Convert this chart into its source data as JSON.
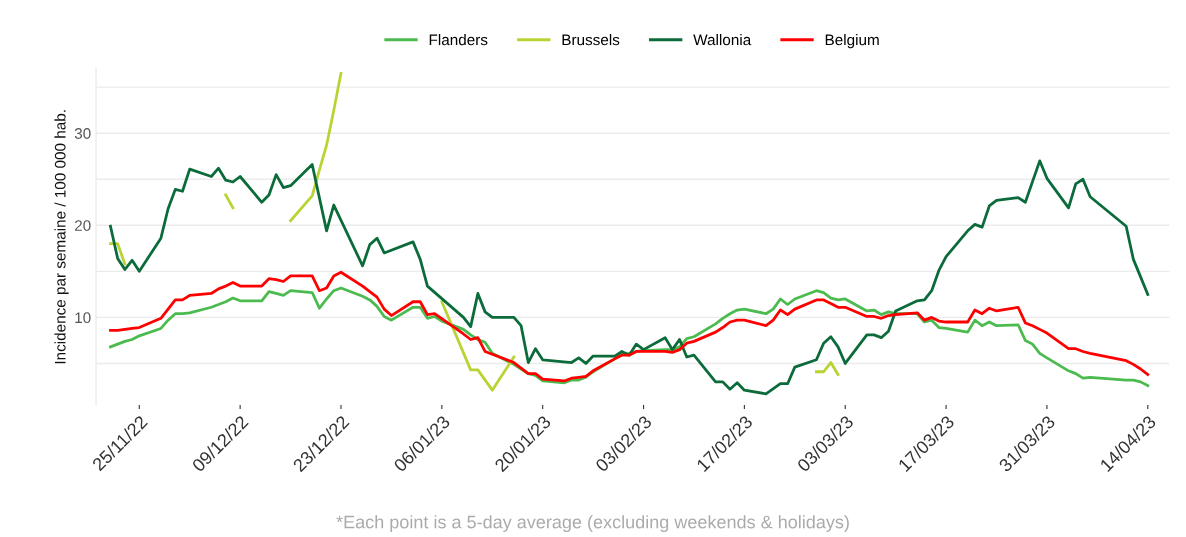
{
  "chart_data": {
    "type": "line",
    "ylabel": "Incidence par semaine / 100 000 hab.",
    "annotations": [
      "*Each point is a 5-day average (excluding weekends & holidays)"
    ],
    "xlim": [
      "2022-11-19",
      "2023-04-17"
    ],
    "xticks": [
      {
        "value": "2022-11-25",
        "label": "25/11/22"
      },
      {
        "value": "2022-12-09",
        "label": "09/12/22"
      },
      {
        "value": "2022-12-23",
        "label": "23/12/22"
      },
      {
        "value": "2023-01-06",
        "label": "06/01/23"
      },
      {
        "value": "2023-01-20",
        "label": "20/01/23"
      },
      {
        "value": "2023-02-03",
        "label": "03/02/23"
      },
      {
        "value": "2023-02-17",
        "label": "17/02/23"
      },
      {
        "value": "2023-03-03",
        "label": "03/03/23"
      },
      {
        "value": "2023-03-17",
        "label": "17/03/23"
      },
      {
        "value": "2023-03-31",
        "label": "31/03/23"
      },
      {
        "value": "2023-04-14",
        "label": "14/04/23"
      }
    ],
    "ylim": [
      0.5,
      37
    ],
    "yticks": [
      {
        "value": 5,
        "label": null
      },
      10,
      {
        "value": 15,
        "label": null
      },
      20,
      {
        "value": 25,
        "label": null
      },
      30,
      {
        "value": 35,
        "label": null
      }
    ],
    "grid": "y",
    "legend": "top",
    "line_style": "solid",
    "marker": "none",
    "series": [
      {
        "name": "Flanders",
        "color": "#4cbb4f",
        "x": [
          "2022-11-21",
          "2022-11-22",
          "2022-11-23",
          "2022-11-24",
          "2022-11-25",
          "2022-11-28",
          "2022-11-29",
          "2022-11-30",
          "2022-12-01",
          "2022-12-02",
          "2022-12-05",
          "2022-12-06",
          "2022-12-07",
          "2022-12-08",
          "2022-12-09",
          "2022-12-12",
          "2022-12-13",
          "2022-12-14",
          "2022-12-15",
          "2022-12-16",
          "2022-12-19",
          "2022-12-20",
          "2022-12-21",
          "2022-12-22",
          "2022-12-23",
          "2022-12-26",
          "2022-12-27",
          "2022-12-28",
          "2022-12-29",
          "2022-12-30",
          "2023-01-02",
          "2023-01-03",
          "2023-01-04",
          "2023-01-05",
          "2023-01-06",
          "2023-01-09",
          "2023-01-10",
          "2023-01-11",
          "2023-01-12",
          "2023-01-13",
          "2023-01-16",
          "2023-01-17",
          "2023-01-18",
          "2023-01-19",
          "2023-01-20",
          "2023-01-23",
          "2023-01-24",
          "2023-01-25",
          "2023-01-26",
          "2023-01-27",
          "2023-01-30",
          "2023-01-31",
          "2023-02-01",
          "2023-02-02",
          "2023-02-03",
          "2023-02-06",
          "2023-02-07",
          "2023-02-08",
          "2023-02-09",
          "2023-02-10",
          "2023-02-13",
          "2023-02-14",
          "2023-02-15",
          "2023-02-16",
          "2023-02-17",
          "2023-02-20",
          "2023-02-21",
          "2023-02-22",
          "2023-02-23",
          "2023-02-24",
          "2023-02-27",
          "2023-02-28",
          "2023-03-01",
          "2023-03-02",
          "2023-03-03",
          "2023-03-06",
          "2023-03-07",
          "2023-03-08",
          "2023-03-09",
          "2023-03-10",
          "2023-03-13",
          "2023-03-14",
          "2023-03-15",
          "2023-03-16",
          "2023-03-17",
          "2023-03-20",
          "2023-03-21",
          "2023-03-22",
          "2023-03-23",
          "2023-03-24",
          "2023-03-27",
          "2023-03-28",
          "2023-03-29",
          "2023-03-30",
          "2023-03-31",
          "2023-04-03",
          "2023-04-04",
          "2023-04-05",
          "2023-04-06",
          "2023-04-11",
          "2023-04-12",
          "2023-04-13",
          "2023-04-14"
        ],
        "values": [
          6.8,
          7.1,
          7.4,
          7.6,
          8.0,
          8.8,
          9.7,
          10.4,
          10.4,
          10.5,
          11.1,
          11.4,
          11.7,
          12.1,
          11.8,
          11.8,
          12.8,
          12.6,
          12.4,
          12.9,
          12.7,
          11.0,
          12.0,
          12.9,
          13.2,
          12.3,
          11.9,
          11.2,
          10.1,
          9.7,
          11.1,
          11.1,
          9.9,
          10.1,
          9.6,
          8.7,
          8.1,
          7.6,
          7.3,
          6.1,
          4.9,
          4.4,
          3.9,
          3.7,
          3.1,
          2.9,
          3.2,
          3.2,
          3.5,
          4.1,
          5.5,
          6.0,
          6.1,
          6.3,
          6.4,
          6.5,
          6.5,
          6.8,
          7.7,
          7.9,
          9.3,
          9.9,
          10.4,
          10.8,
          10.9,
          10.4,
          10.9,
          12.0,
          11.4,
          12.0,
          12.9,
          12.7,
          12.1,
          11.9,
          12.0,
          10.7,
          10.8,
          10.3,
          10.6,
          10.4,
          10.4,
          9.5,
          9.7,
          8.9,
          8.8,
          8.4,
          9.7,
          9.1,
          9.5,
          9.1,
          9.2,
          7.5,
          7.1,
          6.1,
          5.6,
          4.2,
          3.9,
          3.4,
          3.5,
          3.2,
          3.2,
          3.0,
          2.6
        ]
      },
      {
        "name": "Brussels",
        "color": "#b8d433",
        "x": [
          "2022-11-21",
          "2022-11-22",
          "2022-11-23",
          "2022-11-24",
          "2022-12-07",
          "2022-12-08",
          "2022-12-09",
          "2022-12-16",
          "2022-12-19",
          "2022-12-20",
          "2022-12-21",
          "2022-12-22",
          "2022-12-23",
          "2022-12-26",
          "2023-01-06",
          "2023-01-10",
          "2023-01-11",
          "2023-01-13",
          "2023-01-16",
          "2023-01-17",
          "2023-02-27",
          "2023-02-28",
          "2023-03-01",
          "2023-03-02"
        ],
        "values": [
          18.0,
          18.0,
          15.8,
          null,
          23.3,
          21.9,
          null,
          20.5,
          23.2,
          26.0,
          28.7,
          32.5,
          36.5,
          null,
          11.7,
          4.3,
          4.3,
          2.1,
          5.7,
          null,
          4.1,
          4.1,
          5.1,
          3.8
        ]
      },
      {
        "name": "Wallonia",
        "color": "#0b6b3a",
        "x": [
          "2022-11-21",
          "2022-11-22",
          "2022-11-23",
          "2022-11-24",
          "2022-11-25",
          "2022-11-28",
          "2022-11-29",
          "2022-11-30",
          "2022-12-01",
          "2022-12-02",
          "2022-12-05",
          "2022-12-06",
          "2022-12-07",
          "2022-12-08",
          "2022-12-09",
          "2022-12-12",
          "2022-12-13",
          "2022-12-14",
          "2022-12-15",
          "2022-12-16",
          "2022-12-19",
          "2022-12-21",
          "2022-12-22",
          "2022-12-26",
          "2022-12-27",
          "2022-12-28",
          "2022-12-29",
          "2023-01-02",
          "2023-01-03",
          "2023-01-04",
          "2023-01-09",
          "2023-01-10",
          "2023-01-11",
          "2023-01-12",
          "2023-01-13",
          "2023-01-16",
          "2023-01-17",
          "2023-01-18",
          "2023-01-19",
          "2023-01-20",
          "2023-01-24",
          "2023-01-25",
          "2023-01-26",
          "2023-01-27",
          "2023-01-30",
          "2023-01-31",
          "2023-02-01",
          "2023-02-02",
          "2023-02-03",
          "2023-02-06",
          "2023-02-07",
          "2023-02-08",
          "2023-02-09",
          "2023-02-10",
          "2023-02-13",
          "2023-02-14",
          "2023-02-15",
          "2023-02-16",
          "2023-02-17",
          "2023-02-20",
          "2023-02-22",
          "2023-02-23",
          "2023-02-24",
          "2023-02-27",
          "2023-02-28",
          "2023-03-01",
          "2023-03-02",
          "2023-03-03",
          "2023-03-06",
          "2023-03-07",
          "2023-03-08",
          "2023-03-09",
          "2023-03-10",
          "2023-03-13",
          "2023-03-14",
          "2023-03-15",
          "2023-03-16",
          "2023-03-17",
          "2023-03-20",
          "2023-03-21",
          "2023-03-22",
          "2023-03-23",
          "2023-03-24",
          "2023-03-27",
          "2023-03-28",
          "2023-03-30",
          "2023-03-31",
          "2023-04-03",
          "2023-04-04",
          "2023-04-05",
          "2023-04-06",
          "2023-04-11",
          "2023-04-12",
          "2023-04-13",
          "2023-04-14"
        ],
        "values": [
          19.9,
          16.4,
          15.2,
          16.2,
          15.0,
          18.6,
          21.8,
          23.9,
          23.7,
          26.1,
          25.3,
          26.2,
          24.9,
          24.7,
          25.3,
          22.5,
          23.3,
          25.5,
          24.1,
          24.3,
          26.6,
          19.4,
          22.2,
          15.6,
          17.9,
          18.6,
          17.0,
          18.2,
          16.3,
          13.4,
          10.0,
          9.0,
          12.6,
          10.6,
          10.0,
          10.0,
          9.1,
          5.1,
          6.6,
          5.4,
          5.1,
          5.6,
          5.0,
          5.8,
          5.8,
          6.3,
          5.9,
          7.1,
          6.5,
          7.8,
          6.5,
          7.6,
          5.7,
          5.9,
          3.0,
          3.0,
          2.2,
          2.9,
          2.1,
          1.7,
          2.8,
          2.8,
          4.6,
          5.4,
          7.2,
          7.9,
          6.8,
          5.0,
          8.1,
          8.1,
          7.8,
          8.5,
          10.7,
          11.8,
          11.9,
          12.9,
          15.1,
          16.6,
          19.4,
          20.1,
          19.8,
          22.1,
          22.7,
          23.0,
          22.5,
          27.0,
          25.1,
          21.9,
          24.5,
          25.0,
          23.1,
          19.9,
          16.3,
          14.4,
          12.5
        ]
      },
      {
        "name": "Belgium",
        "color": "#ff0000",
        "x": [
          "2022-11-21",
          "2022-11-22",
          "2022-11-23",
          "2022-11-24",
          "2022-11-25",
          "2022-11-28",
          "2022-11-29",
          "2022-11-30",
          "2022-12-01",
          "2022-12-02",
          "2022-12-05",
          "2022-12-06",
          "2022-12-07",
          "2022-12-08",
          "2022-12-09",
          "2022-12-12",
          "2022-12-13",
          "2022-12-14",
          "2022-12-15",
          "2022-12-16",
          "2022-12-19",
          "2022-12-20",
          "2022-12-21",
          "2022-12-22",
          "2022-12-23",
          "2022-12-26",
          "2022-12-27",
          "2022-12-28",
          "2022-12-29",
          "2022-12-30",
          "2023-01-02",
          "2023-01-03",
          "2023-01-04",
          "2023-01-05",
          "2023-01-09",
          "2023-01-10",
          "2023-01-11",
          "2023-01-12",
          "2023-01-16",
          "2023-01-17",
          "2023-01-18",
          "2023-01-19",
          "2023-01-20",
          "2023-01-23",
          "2023-01-24",
          "2023-01-25",
          "2023-01-26",
          "2023-01-27",
          "2023-01-30",
          "2023-01-31",
          "2023-02-01",
          "2023-02-02",
          "2023-02-03",
          "2023-02-06",
          "2023-02-07",
          "2023-02-08",
          "2023-02-09",
          "2023-02-10",
          "2023-02-13",
          "2023-02-14",
          "2023-02-15",
          "2023-02-16",
          "2023-02-17",
          "2023-02-20",
          "2023-02-21",
          "2023-02-22",
          "2023-02-23",
          "2023-02-24",
          "2023-02-27",
          "2023-02-28",
          "2023-03-01",
          "2023-03-02",
          "2023-03-03",
          "2023-03-06",
          "2023-03-07",
          "2023-03-08",
          "2023-03-09",
          "2023-03-10",
          "2023-03-13",
          "2023-03-14",
          "2023-03-15",
          "2023-03-16",
          "2023-03-17",
          "2023-03-20",
          "2023-03-21",
          "2023-03-22",
          "2023-03-23",
          "2023-03-24",
          "2023-03-27",
          "2023-03-28",
          "2023-03-29",
          "2023-03-30",
          "2023-03-31",
          "2023-04-03",
          "2023-04-04",
          "2023-04-05",
          "2023-04-06",
          "2023-04-11",
          "2023-04-12",
          "2023-04-13",
          "2023-04-14"
        ],
        "values": [
          8.6,
          8.6,
          8.7,
          8.8,
          8.9,
          9.9,
          10.9,
          11.9,
          11.9,
          12.4,
          12.6,
          13.1,
          13.4,
          13.8,
          13.4,
          13.4,
          14.2,
          14.1,
          13.9,
          14.5,
          14.5,
          12.9,
          13.2,
          14.5,
          14.9,
          13.4,
          12.8,
          12.2,
          10.9,
          10.2,
          11.7,
          11.7,
          10.3,
          10.4,
          8.2,
          7.6,
          7.8,
          6.3,
          5.1,
          4.5,
          3.9,
          3.9,
          3.3,
          3.1,
          3.4,
          3.5,
          3.6,
          4.2,
          5.5,
          5.9,
          5.9,
          6.3,
          6.3,
          6.3,
          6.2,
          6.5,
          7.2,
          7.4,
          8.4,
          8.9,
          9.5,
          9.7,
          9.7,
          9.1,
          9.7,
          10.8,
          10.3,
          10.9,
          11.9,
          11.9,
          11.5,
          11.1,
          11.1,
          10.1,
          10.1,
          9.9,
          10.2,
          10.3,
          10.5,
          9.7,
          10.0,
          9.6,
          9.5,
          9.5,
          10.8,
          10.4,
          11.0,
          10.7,
          11.1,
          9.4,
          9.1,
          8.7,
          8.3,
          6.6,
          6.6,
          6.3,
          6.1,
          5.3,
          4.9,
          4.4,
          3.8
        ]
      }
    ]
  }
}
